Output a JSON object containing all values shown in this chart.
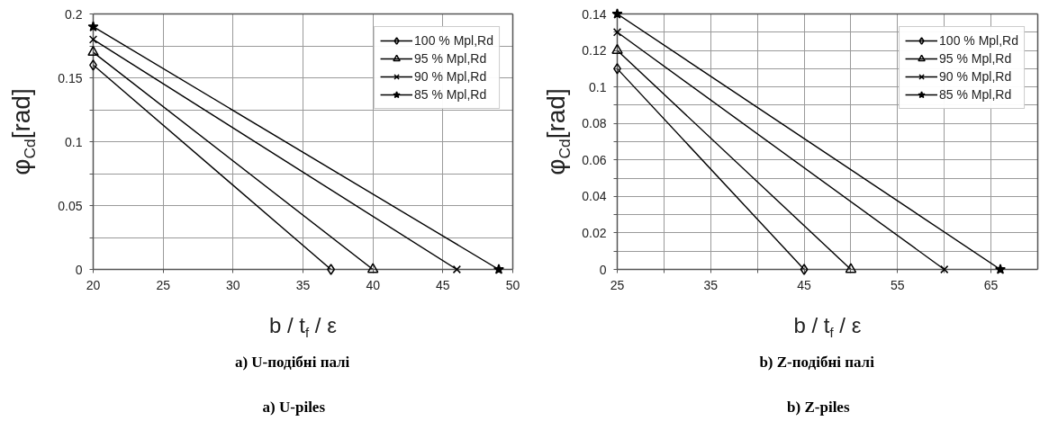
{
  "chart_data": [
    {
      "type": "line",
      "xlabel": "b / t$_{f}$ / ε",
      "ylabel": "φ$_{Cd}$[rad]",
      "annotations": [
        "a) U-подібні палі",
        "a) U-piles"
      ],
      "xlim": [
        20,
        50
      ],
      "xticks": [
        20,
        25,
        30,
        35,
        40,
        45,
        50
      ],
      "ylim": [
        0,
        0.2
      ],
      "yticks": [
        0,
        {
          "value": 0.025,
          "label": null
        },
        0.05,
        {
          "value": 0.075,
          "label": null
        },
        0.1,
        {
          "value": 0.125,
          "label": null
        },
        0.15,
        {
          "value": 0.175,
          "label": null
        },
        0.2
      ],
      "grid": true,
      "legend": "top right",
      "series": [
        {
          "name": "100 % Mpl,Rd",
          "color": "#000000",
          "marker": "diamond",
          "x": [
            20,
            37
          ],
          "values": [
            0.16,
            0
          ]
        },
        {
          "name": "95 % Mpl,Rd",
          "color": "#000000",
          "marker": "triangle",
          "x": [
            20,
            40
          ],
          "values": [
            0.17,
            0
          ]
        },
        {
          "name": "90 % Mpl,Rd",
          "color": "#000000",
          "marker": "cross",
          "x": [
            20,
            46
          ],
          "values": [
            0.18,
            0
          ]
        },
        {
          "name": "85 % Mpl,Rd",
          "color": "#000000",
          "marker": "star",
          "x": [
            20,
            49
          ],
          "values": [
            0.19,
            0
          ]
        }
      ]
    },
    {
      "type": "line",
      "xlabel": "b / t$_{f}$ / ε",
      "ylabel": "φ$_{Cd}$[rad]",
      "annotations": [
        "b) Z-подібні палі",
        "b) Z-piles"
      ],
      "xlim": [
        25,
        70
      ],
      "xticks": [
        25,
        {
          "value": 30,
          "label": null
        },
        35,
        {
          "value": 40,
          "label": null
        },
        45,
        {
          "value": 50,
          "label": null
        },
        55,
        {
          "value": 60,
          "label": null
        },
        65
      ],
      "ylim": [
        0,
        0.14
      ],
      "yticks": [
        0,
        {
          "value": 0.01,
          "label": null
        },
        0.02,
        {
          "value": 0.03,
          "label": null
        },
        0.04,
        {
          "value": 0.05,
          "label": null
        },
        0.06,
        {
          "value": 0.07,
          "label": null
        },
        0.08,
        {
          "value": 0.09,
          "label": null
        },
        0.1,
        {
          "value": 0.11,
          "label": null
        },
        0.12,
        {
          "value": 0.13,
          "label": null
        },
        0.14
      ],
      "grid": true,
      "legend": "top right",
      "series": [
        {
          "name": "100 % Mpl,Rd",
          "color": "#000000",
          "marker": "diamond",
          "x": [
            25,
            45
          ],
          "values": [
            0.11,
            0
          ]
        },
        {
          "name": "95 % Mpl,Rd",
          "color": "#000000",
          "marker": "triangle",
          "x": [
            25,
            50
          ],
          "values": [
            0.12,
            0
          ]
        },
        {
          "name": "90 % Mpl,Rd",
          "color": "#000000",
          "marker": "cross",
          "x": [
            25,
            60
          ],
          "values": [
            0.13,
            0
          ]
        },
        {
          "name": "85 % Mpl,Rd",
          "color": "#000000",
          "marker": "star",
          "x": [
            25,
            66
          ],
          "values": [
            0.14,
            0
          ]
        }
      ]
    }
  ]
}
